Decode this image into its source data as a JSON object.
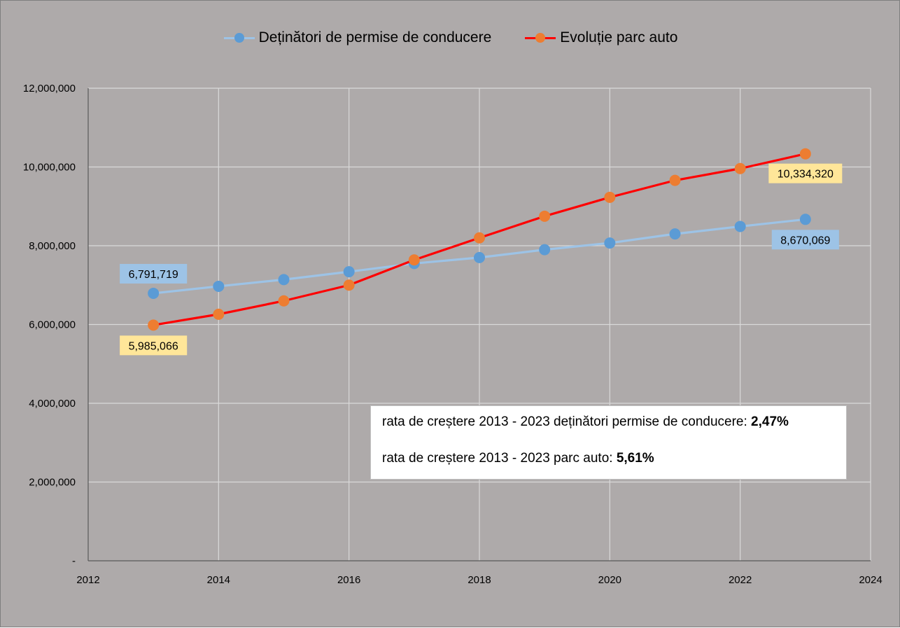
{
  "chart_data": {
    "type": "line",
    "title": "",
    "xlabel": "",
    "ylabel": "",
    "xlim": [
      2012,
      2024
    ],
    "ylim": [
      0,
      12000000
    ],
    "x_ticks": [
      "2012",
      "2014",
      "2016",
      "2018",
      "2020",
      "2022",
      "2024"
    ],
    "y_ticks": [
      "-",
      "2,000,000",
      "4,000,000",
      "6,000,000",
      "8,000,000",
      "10,000,000",
      "12,000,000"
    ],
    "grid": true,
    "legend_position": "top-center",
    "x": [
      2013,
      2014,
      2015,
      2016,
      2017,
      2018,
      2019,
      2020,
      2021,
      2022,
      2023
    ],
    "series": [
      {
        "name": "Deținători de permise de conducere",
        "color": "#9dc3e6",
        "marker_color": "#5b9bd5",
        "values": [
          6791719,
          6970000,
          7140000,
          7340000,
          7550000,
          7700000,
          7900000,
          8070000,
          8300000,
          8490000,
          8670069
        ]
      },
      {
        "name": "Evoluție parc auto",
        "color": "#ff0000",
        "marker_color": "#ed7d31",
        "values": [
          5985066,
          6260000,
          6600000,
          7000000,
          7640000,
          8200000,
          8750000,
          9230000,
          9660000,
          9960000,
          10334320
        ]
      }
    ],
    "data_labels": [
      {
        "series": 0,
        "point": 0,
        "text": "6,791,719",
        "bg": "#9dc3e6"
      },
      {
        "series": 0,
        "point": 10,
        "text": "8,670,069",
        "bg": "#9dc3e6"
      },
      {
        "series": 1,
        "point": 0,
        "text": "5,985,066",
        "bg": "#ffe699"
      },
      {
        "series": 1,
        "point": 10,
        "text": "10,334,320",
        "bg": "#ffe699"
      }
    ]
  },
  "annotation": {
    "line1_text": "rata de creștere 2013 - 2023 deținători permise de conducere: ",
    "line1_value": "2,47%",
    "line2_text": "rata de creștere 2013 - 2023 parc auto: ",
    "line2_value": "5,61%"
  }
}
